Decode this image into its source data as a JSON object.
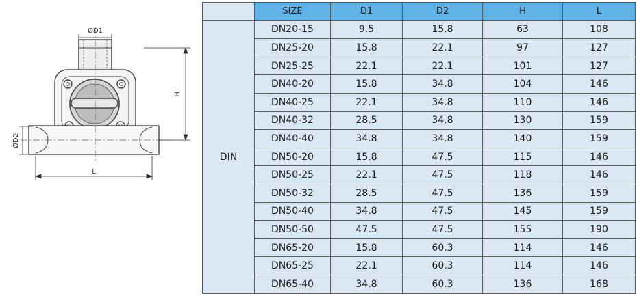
{
  "drawing": {
    "label_d1": "ØD1",
    "label_d2": "ØD2",
    "label_h": "H",
    "label_l": "L"
  },
  "table": {
    "headers": [
      "SIZE",
      "D1",
      "D2",
      "H",
      "L"
    ],
    "standard": "DIN",
    "rows": [
      {
        "size": "DN20-15",
        "d1": "9.5",
        "d2": "15.8",
        "h": "63",
        "l": "108"
      },
      {
        "size": "DN25-20",
        "d1": "15.8",
        "d2": "22.1",
        "h": "97",
        "l": "127"
      },
      {
        "size": "DN25-25",
        "d1": "22.1",
        "d2": "22.1",
        "h": "101",
        "l": "127"
      },
      {
        "size": "DN40-20",
        "d1": "15.8",
        "d2": "34.8",
        "h": "104",
        "l": "146"
      },
      {
        "size": "DN40-25",
        "d1": "22.1",
        "d2": "34.8",
        "h": "110",
        "l": "146"
      },
      {
        "size": "DN40-32",
        "d1": "28.5",
        "d2": "34.8",
        "h": "130",
        "l": "159"
      },
      {
        "size": "DN40-40",
        "d1": "34.8",
        "d2": "34.8",
        "h": "140",
        "l": "159"
      },
      {
        "size": "DN50-20",
        "d1": "15.8",
        "d2": "47.5",
        "h": "115",
        "l": "146"
      },
      {
        "size": "DN50-25",
        "d1": "22.1",
        "d2": "47.5",
        "h": "118",
        "l": "146"
      },
      {
        "size": "DN50-32",
        "d1": "28.5",
        "d2": "47.5",
        "h": "136",
        "l": "159"
      },
      {
        "size": "DN50-40",
        "d1": "34.8",
        "d2": "47.5",
        "h": "145",
        "l": "159"
      },
      {
        "size": "DN50-50",
        "d1": "47.5",
        "d2": "47.5",
        "h": "155",
        "l": "190"
      },
      {
        "size": "DN65-20",
        "d1": "15.8",
        "d2": "60.3",
        "h": "114",
        "l": "146"
      },
      {
        "size": "DN65-25",
        "d1": "22.1",
        "d2": "60.3",
        "h": "114",
        "l": "146"
      },
      {
        "size": "DN65-40",
        "d1": "34.8",
        "d2": "60.3",
        "h": "136",
        "l": "168"
      }
    ]
  }
}
